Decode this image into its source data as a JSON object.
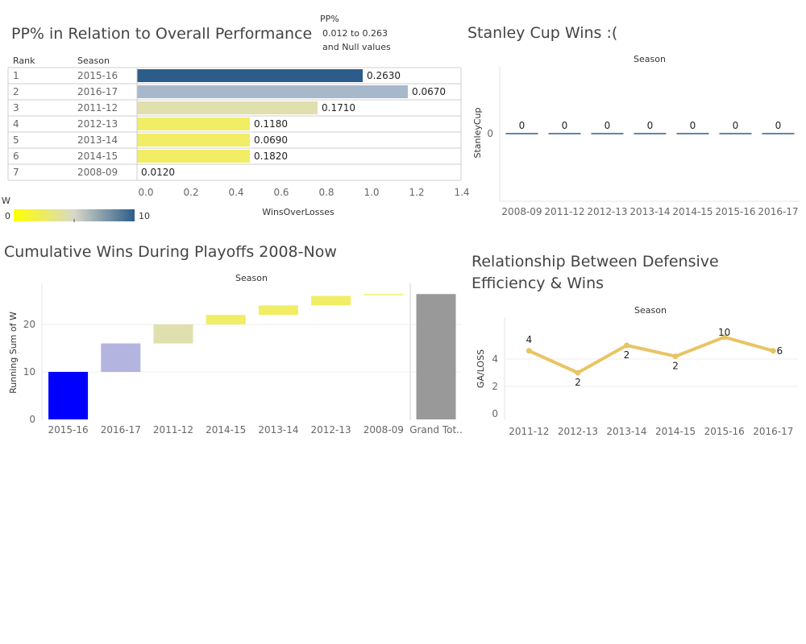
{
  "chart_data": [
    {
      "type": "bar",
      "title": "PP% in Relation to Overall Performance",
      "table_headers": [
        "Rank",
        "Season"
      ],
      "ranks": [
        "1",
        "2",
        "3",
        "4",
        "5",
        "6",
        "7"
      ],
      "categories": [
        "2015-16",
        "2016-17",
        "2011-12",
        "2012-13",
        "2013-14",
        "2014-15",
        "2008-09"
      ],
      "values": [
        1.0,
        1.2,
        0.8,
        0.5,
        0.5,
        0.5,
        0.0
      ],
      "labels": [
        "0.2630",
        "0.0670",
        "0.1710",
        "0.1180",
        "0.0690",
        "0.1820",
        "0.0120"
      ],
      "colors": [
        "#2c5d8a",
        "#a8b8cb",
        "#e0dfae",
        "#f1ed64",
        "#f1ed64",
        "#f1ed64",
        "#f1ed64"
      ],
      "xlabel": "WinsOverLosses",
      "xlim": [
        0,
        1.4
      ],
      "xticks": [
        "0.0",
        "0.2",
        "0.4",
        "0.6",
        "0.8",
        "1.0",
        "1.2",
        "1.4"
      ],
      "size_legend": {
        "title": "PP%",
        "line1": "0.012 to 0.263",
        "line2": "and Null values"
      },
      "color_legend": {
        "title": "W",
        "min": "0",
        "max": "10",
        "min_color": "#ffff00",
        "max_color": "#2c5d8a"
      }
    },
    {
      "type": "bar",
      "title": "Stanley Cup Wins :(",
      "header": "Season",
      "categories": [
        "2008-09",
        "2011-12",
        "2012-13",
        "2013-14",
        "2014-15",
        "2015-16",
        "2016-17"
      ],
      "values": [
        0,
        0,
        0,
        0,
        0,
        0,
        0
      ],
      "ylabel": "StanleyCup",
      "yticks": [
        "0"
      ],
      "color": "#2c5d8a"
    },
    {
      "type": "bar",
      "title": "Cumulative Wins During Playoffs 2008-Now",
      "header": "Season",
      "categories": [
        "2015-16",
        "2016-17",
        "2011-12",
        "2014-15",
        "2013-14",
        "2012-13",
        "2008-09",
        "Grand Tot.."
      ],
      "starts": [
        0,
        10,
        16,
        20,
        22,
        24,
        26.2,
        0
      ],
      "ends": [
        10,
        16,
        20,
        22,
        24,
        26,
        26.4,
        26.4
      ],
      "colors": [
        "#0000ff",
        "#b3b4e0",
        "#e0dfae",
        "#f1ed64",
        "#f1ed64",
        "#f1ed64",
        "#f1ed64",
        "#999999"
      ],
      "ylabel": "Running Sum of W",
      "ylim": [
        0,
        28
      ],
      "yticks": [
        0,
        10,
        20
      ]
    },
    {
      "type": "line",
      "title_lines": [
        "Relationship Between Defensive",
        "Efficiency & Wins"
      ],
      "header": "Season",
      "categories": [
        "2011-12",
        "2012-13",
        "2013-14",
        "2014-15",
        "2015-16",
        "2016-17"
      ],
      "values": [
        4.6,
        3.0,
        5.0,
        4.2,
        5.6,
        4.6
      ],
      "labels": [
        "4",
        "2",
        "2",
        "2",
        "10",
        "6"
      ],
      "ylabel": "GA/LOSS",
      "ylim": [
        0,
        6
      ],
      "yticks": [
        0,
        2,
        4
      ],
      "color": "#e8c463"
    }
  ]
}
